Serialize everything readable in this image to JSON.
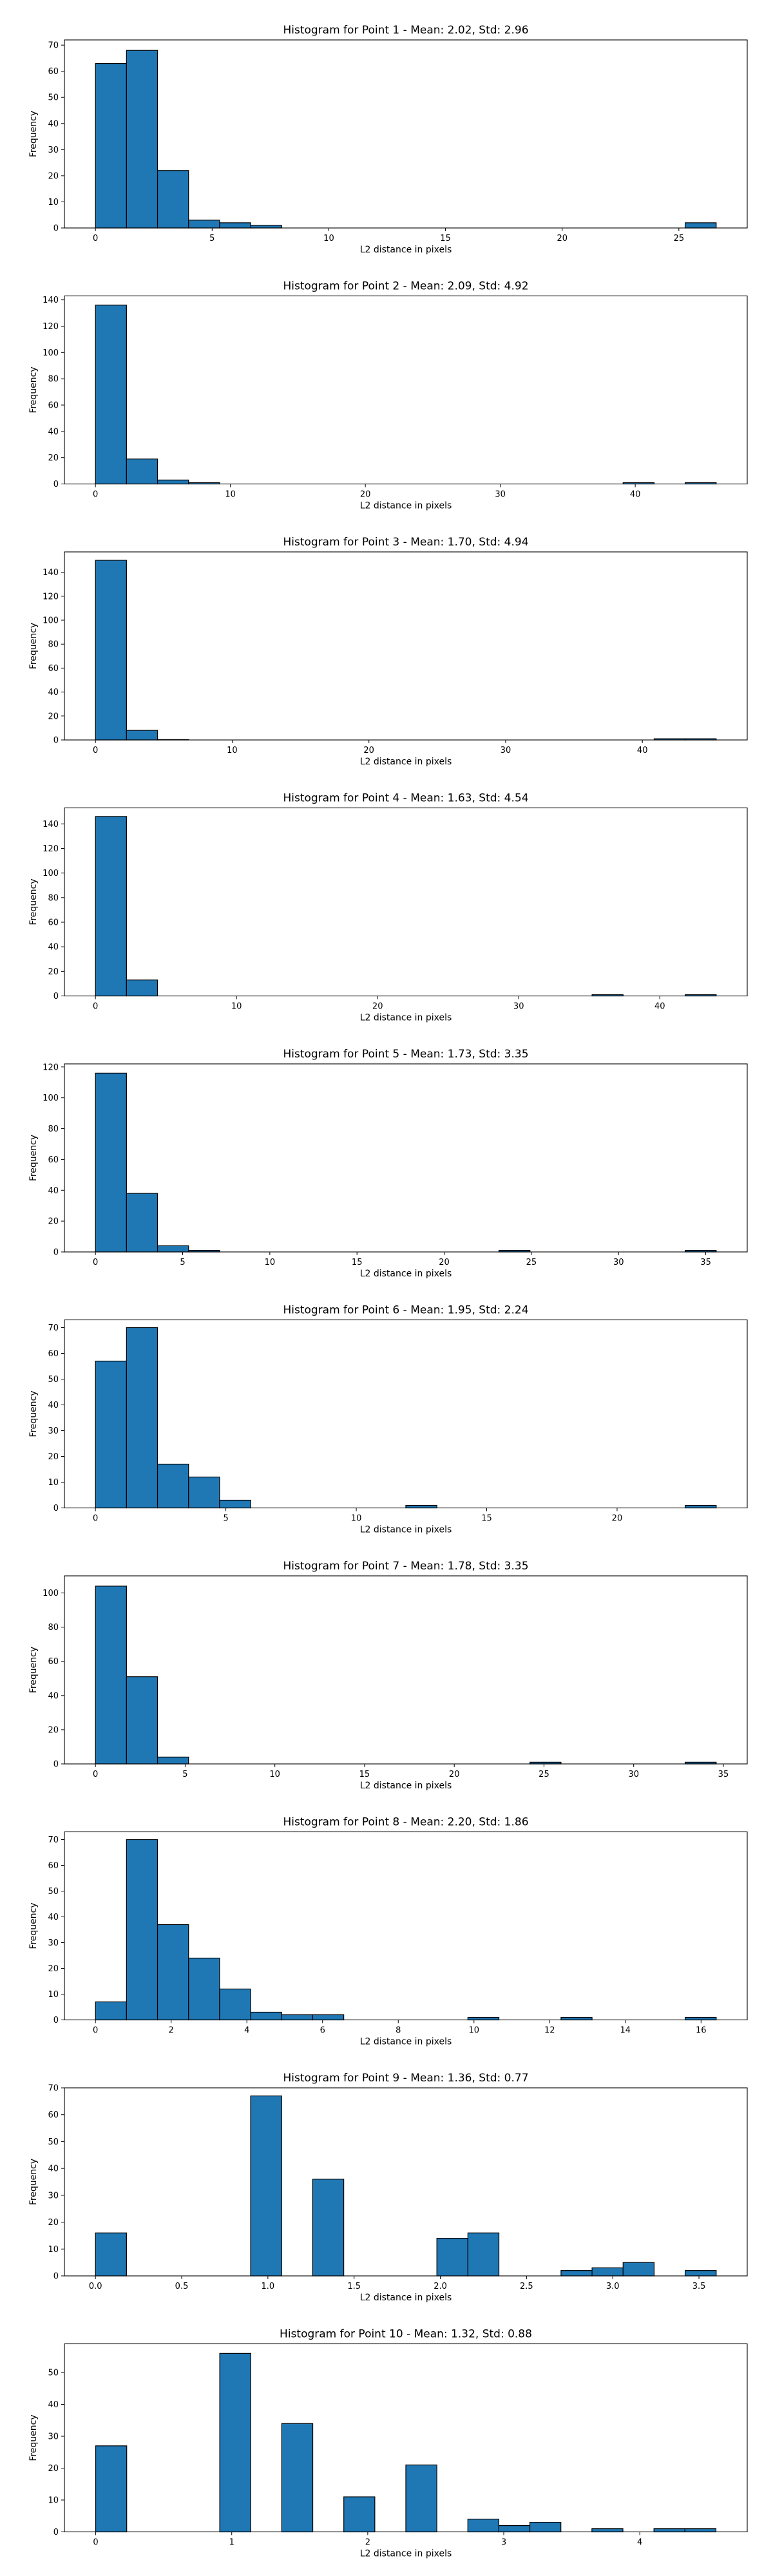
{
  "colors": {
    "bar_fill": "#1f77b4",
    "bar_edge": "#000000",
    "axes": "#000000",
    "background": "#ffffff"
  },
  "chart_data": [
    {
      "type": "bar",
      "title": "Histogram for Point 1 - Mean: 2.02, Std: 2.96",
      "xlabel": "L2 distance in pixels",
      "ylabel": "Frequency",
      "xlim": [
        -1.33,
        27.93
      ],
      "ylim": [
        0,
        72
      ],
      "xticks": [
        0,
        5,
        10,
        15,
        20,
        25
      ],
      "yticks": [
        0,
        10,
        20,
        30,
        40,
        50,
        60,
        70
      ],
      "grid": false,
      "bins": [
        {
          "x0": 0.0,
          "x1": 1.33,
          "count": 63
        },
        {
          "x0": 1.33,
          "x1": 2.66,
          "count": 68
        },
        {
          "x0": 2.66,
          "x1": 3.99,
          "count": 22
        },
        {
          "x0": 3.99,
          "x1": 5.32,
          "count": 3
        },
        {
          "x0": 5.32,
          "x1": 6.65,
          "count": 2
        },
        {
          "x0": 6.65,
          "x1": 7.98,
          "count": 1
        },
        {
          "x0": 25.27,
          "x1": 26.6,
          "count": 2
        }
      ]
    },
    {
      "type": "bar",
      "title": "Histogram for Point 2 - Mean: 2.09, Std: 4.92",
      "xlabel": "L2 distance in pixels",
      "ylabel": "Frequency",
      "xlim": [
        -2.3,
        48.3
      ],
      "ylim": [
        0,
        143
      ],
      "xticks": [
        0,
        10,
        20,
        30,
        40
      ],
      "yticks": [
        0,
        20,
        40,
        60,
        80,
        100,
        120,
        140
      ],
      "grid": false,
      "bins": [
        {
          "x0": 0.0,
          "x1": 2.3,
          "count": 136
        },
        {
          "x0": 2.3,
          "x1": 4.6,
          "count": 19
        },
        {
          "x0": 4.6,
          "x1": 6.9,
          "count": 3
        },
        {
          "x0": 6.9,
          "x1": 9.2,
          "count": 1
        },
        {
          "x0": 39.1,
          "x1": 41.4,
          "count": 1
        },
        {
          "x0": 43.7,
          "x1": 46.0,
          "count": 1
        }
      ]
    },
    {
      "type": "bar",
      "title": "Histogram for Point 3 - Mean: 1.70, Std: 4.94",
      "xlabel": "L2 distance in pixels",
      "ylabel": "Frequency",
      "xlim": [
        -2.27,
        47.67
      ],
      "ylim": [
        0,
        157
      ],
      "xticks": [
        0,
        10,
        20,
        30,
        40
      ],
      "yticks": [
        0,
        20,
        40,
        60,
        80,
        100,
        120,
        140
      ],
      "grid": false,
      "bins": [
        {
          "x0": 0.0,
          "x1": 2.27,
          "count": 150
        },
        {
          "x0": 2.27,
          "x1": 4.54,
          "count": 8
        },
        {
          "x0": 4.54,
          "x1": 6.81,
          "count": 0.3
        },
        {
          "x0": 40.86,
          "x1": 43.13,
          "count": 1
        },
        {
          "x0": 43.13,
          "x1": 45.4,
          "count": 1
        }
      ]
    },
    {
      "type": "bar",
      "title": "Histogram for Point 4 - Mean: 1.63, Std: 4.54",
      "xlabel": "L2 distance in pixels",
      "ylabel": "Frequency",
      "xlim": [
        -2.2,
        46.2
      ],
      "ylim": [
        0,
        153
      ],
      "xticks": [
        0,
        10,
        20,
        30,
        40
      ],
      "yticks": [
        0,
        20,
        40,
        60,
        80,
        100,
        120,
        140
      ],
      "grid": false,
      "bins": [
        {
          "x0": 0.0,
          "x1": 2.2,
          "count": 146
        },
        {
          "x0": 2.2,
          "x1": 4.4,
          "count": 13
        },
        {
          "x0": 35.2,
          "x1": 37.4,
          "count": 1
        },
        {
          "x0": 41.8,
          "x1": 44.0,
          "count": 1
        }
      ]
    },
    {
      "type": "bar",
      "title": "Histogram for Point 5 - Mean: 1.73, Std: 3.35",
      "xlabel": "L2 distance in pixels",
      "ylabel": "Frequency",
      "xlim": [
        -1.78,
        37.38
      ],
      "ylim": [
        0,
        122
      ],
      "xticks": [
        0,
        5,
        10,
        15,
        20,
        25,
        30,
        35
      ],
      "yticks": [
        0,
        20,
        40,
        60,
        80,
        100,
        120
      ],
      "grid": false,
      "bins": [
        {
          "x0": 0.0,
          "x1": 1.78,
          "count": 116
        },
        {
          "x0": 1.78,
          "x1": 3.56,
          "count": 38
        },
        {
          "x0": 3.56,
          "x1": 5.34,
          "count": 4
        },
        {
          "x0": 5.34,
          "x1": 7.12,
          "count": 1
        },
        {
          "x0": 23.14,
          "x1": 24.92,
          "count": 1
        },
        {
          "x0": 33.82,
          "x1": 35.6,
          "count": 1
        }
      ]
    },
    {
      "type": "bar",
      "title": "Histogram for Point 6 - Mean: 1.95, Std: 2.24",
      "xlabel": "L2 distance in pixels",
      "ylabel": "Frequency",
      "xlim": [
        -1.19,
        24.99
      ],
      "ylim": [
        0,
        73
      ],
      "xticks": [
        0,
        5,
        10,
        15,
        20
      ],
      "yticks": [
        0,
        10,
        20,
        30,
        40,
        50,
        60,
        70
      ],
      "grid": false,
      "bins": [
        {
          "x0": 0.0,
          "x1": 1.19,
          "count": 57
        },
        {
          "x0": 1.19,
          "x1": 2.38,
          "count": 70
        },
        {
          "x0": 2.38,
          "x1": 3.57,
          "count": 17
        },
        {
          "x0": 3.57,
          "x1": 4.76,
          "count": 12
        },
        {
          "x0": 4.76,
          "x1": 5.95,
          "count": 3
        },
        {
          "x0": 11.9,
          "x1": 13.09,
          "count": 1
        },
        {
          "x0": 22.61,
          "x1": 23.8,
          "count": 1
        }
      ]
    },
    {
      "type": "bar",
      "title": "Histogram for Point 7 - Mean: 1.78, Std: 3.35",
      "xlabel": "L2 distance in pixels",
      "ylabel": "Frequency",
      "xlim": [
        -1.73,
        36.33
      ],
      "ylim": [
        0,
        110
      ],
      "xticks": [
        0,
        5,
        10,
        15,
        20,
        25,
        30,
        35
      ],
      "yticks": [
        0,
        20,
        40,
        60,
        80,
        100
      ],
      "grid": false,
      "bins": [
        {
          "x0": 0.0,
          "x1": 1.73,
          "count": 104
        },
        {
          "x0": 1.73,
          "x1": 3.46,
          "count": 51
        },
        {
          "x0": 3.46,
          "x1": 5.19,
          "count": 4
        },
        {
          "x0": 24.22,
          "x1": 25.95,
          "count": 1
        },
        {
          "x0": 32.87,
          "x1": 34.6,
          "count": 1
        }
      ]
    },
    {
      "type": "bar",
      "title": "Histogram for Point 8 - Mean: 2.20, Std: 1.86",
      "xlabel": "L2 distance in pixels",
      "ylabel": "Frequency",
      "xlim": [
        -0.82,
        17.22
      ],
      "ylim": [
        0,
        73
      ],
      "xticks": [
        0,
        2,
        4,
        6,
        8,
        10,
        12,
        14,
        16
      ],
      "yticks": [
        0,
        10,
        20,
        30,
        40,
        50,
        60,
        70
      ],
      "grid": false,
      "bins": [
        {
          "x0": 0.0,
          "x1": 0.82,
          "count": 7
        },
        {
          "x0": 0.82,
          "x1": 1.64,
          "count": 70
        },
        {
          "x0": 1.64,
          "x1": 2.46,
          "count": 37
        },
        {
          "x0": 2.46,
          "x1": 3.28,
          "count": 24
        },
        {
          "x0": 3.28,
          "x1": 4.1,
          "count": 12
        },
        {
          "x0": 4.1,
          "x1": 4.92,
          "count": 3
        },
        {
          "x0": 4.92,
          "x1": 5.74,
          "count": 2
        },
        {
          "x0": 5.74,
          "x1": 6.56,
          "count": 2
        },
        {
          "x0": 9.84,
          "x1": 10.66,
          "count": 1
        },
        {
          "x0": 12.3,
          "x1": 13.12,
          "count": 1
        },
        {
          "x0": 15.58,
          "x1": 16.4,
          "count": 1
        }
      ]
    },
    {
      "type": "bar",
      "title": "Histogram for Point 9 - Mean: 1.36, Std: 0.77",
      "xlabel": "L2 distance in pixels",
      "ylabel": "Frequency",
      "xlim": [
        -0.18,
        3.78
      ],
      "ylim": [
        0,
        70
      ],
      "xticks": [
        0.0,
        0.5,
        1.0,
        1.5,
        2.0,
        2.5,
        3.0,
        3.5
      ],
      "yticks": [
        0,
        10,
        20,
        30,
        40,
        50,
        60,
        70
      ],
      "xtick_labels": [
        "0.0",
        "0.5",
        "1.0",
        "1.5",
        "2.0",
        "2.5",
        "3.0",
        "3.5"
      ],
      "grid": false,
      "bins": [
        {
          "x0": 0.0,
          "x1": 0.18,
          "count": 16
        },
        {
          "x0": 0.9,
          "x1": 1.08,
          "count": 67
        },
        {
          "x0": 1.26,
          "x1": 1.44,
          "count": 36
        },
        {
          "x0": 1.98,
          "x1": 2.16,
          "count": 14
        },
        {
          "x0": 2.16,
          "x1": 2.34,
          "count": 16
        },
        {
          "x0": 2.7,
          "x1": 2.88,
          "count": 2
        },
        {
          "x0": 2.88,
          "x1": 3.06,
          "count": 3
        },
        {
          "x0": 3.06,
          "x1": 3.24,
          "count": 5
        },
        {
          "x0": 3.42,
          "x1": 3.6,
          "count": 2
        }
      ]
    },
    {
      "type": "bar",
      "title": "Histogram for Point 10 - Mean: 1.32, Std: 0.88",
      "xlabel": "L2 distance in pixels",
      "ylabel": "Frequency",
      "xlim": [
        -0.23,
        4.79
      ],
      "ylim": [
        0,
        59
      ],
      "xticks": [
        0,
        1,
        2,
        3,
        4
      ],
      "yticks": [
        0,
        10,
        20,
        30,
        40,
        50
      ],
      "grid": false,
      "bins": [
        {
          "x0": 0.0,
          "x1": 0.228,
          "count": 27
        },
        {
          "x0": 0.912,
          "x1": 1.14,
          "count": 56
        },
        {
          "x0": 1.368,
          "x1": 1.596,
          "count": 34
        },
        {
          "x0": 1.824,
          "x1": 2.052,
          "count": 11
        },
        {
          "x0": 2.28,
          "x1": 2.508,
          "count": 21
        },
        {
          "x0": 2.736,
          "x1": 2.964,
          "count": 4
        },
        {
          "x0": 2.964,
          "x1": 3.192,
          "count": 2
        },
        {
          "x0": 3.192,
          "x1": 3.42,
          "count": 3
        },
        {
          "x0": 3.648,
          "x1": 3.876,
          "count": 1
        },
        {
          "x0": 4.104,
          "x1": 4.332,
          "count": 1
        },
        {
          "x0": 4.332,
          "x1": 4.56,
          "count": 1
        }
      ]
    }
  ]
}
